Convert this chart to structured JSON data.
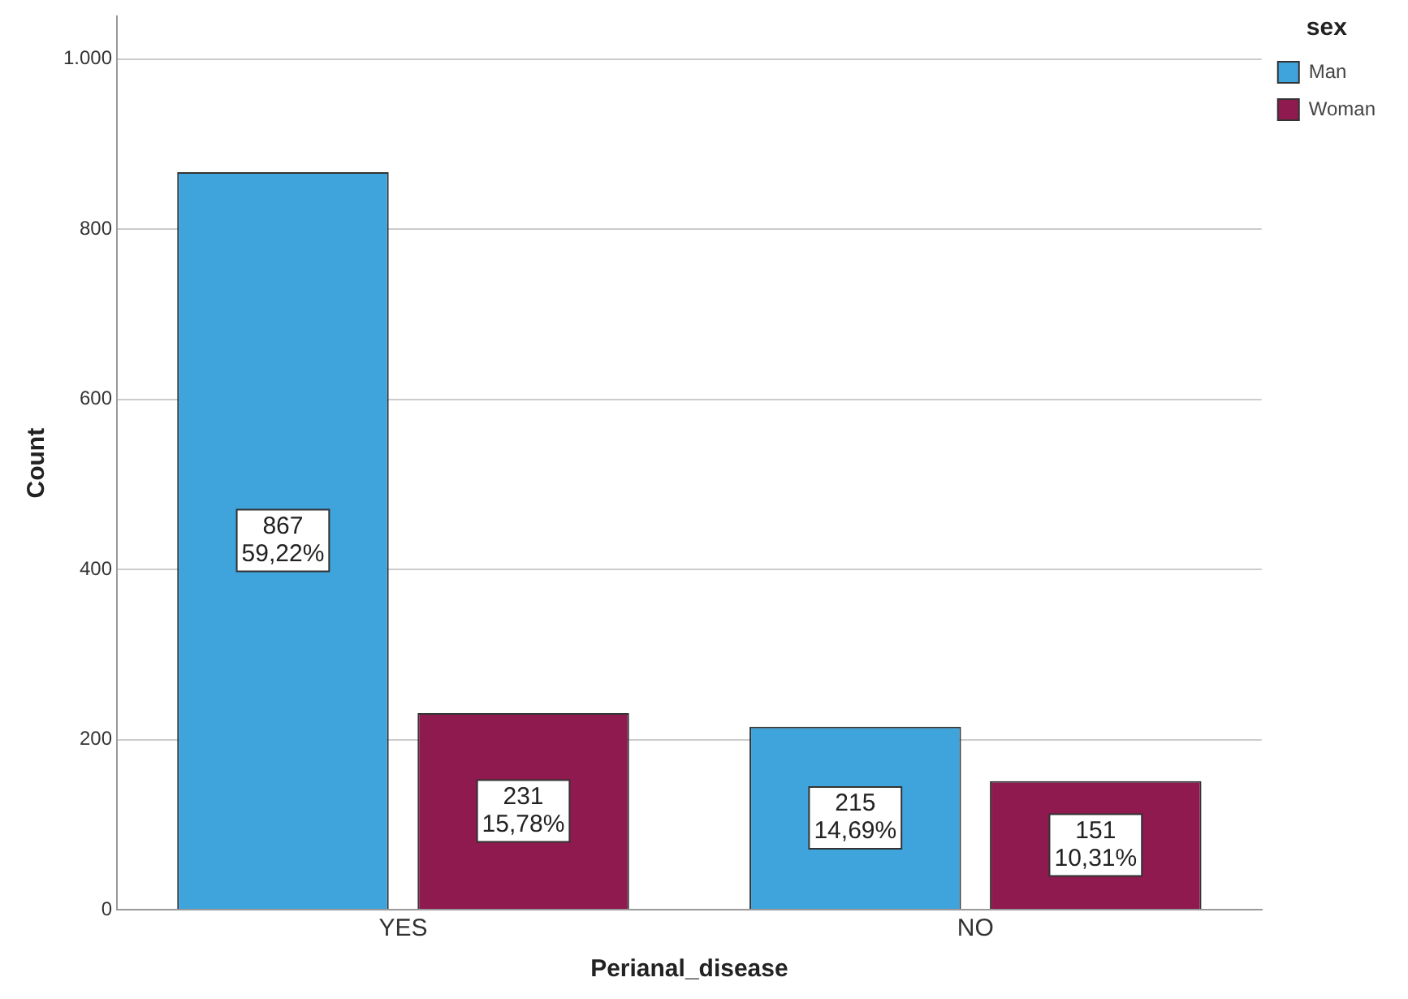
{
  "chart_data": {
    "type": "bar",
    "xlabel": "Perianal_disease",
    "ylabel": "Count",
    "legend_title": "sex",
    "categories": [
      "YES",
      "NO"
    ],
    "series": [
      {
        "name": "Man",
        "color": "#3fa3dc",
        "values": [
          867,
          215
        ],
        "value_labels": [
          "867\n59,22%",
          "215\n14,69%"
        ]
      },
      {
        "name": "Woman",
        "color": "#8e1a4f",
        "values": [
          231,
          151
        ],
        "value_labels": [
          "231\n15,78%",
          "151\n10,31%"
        ]
      }
    ],
    "ylim": [
      0,
      1050
    ],
    "yticks": [
      0,
      200,
      400,
      600,
      800,
      {
        "value": 1000,
        "label": "1.000"
      }
    ],
    "grid": "y",
    "legend": "top right"
  }
}
